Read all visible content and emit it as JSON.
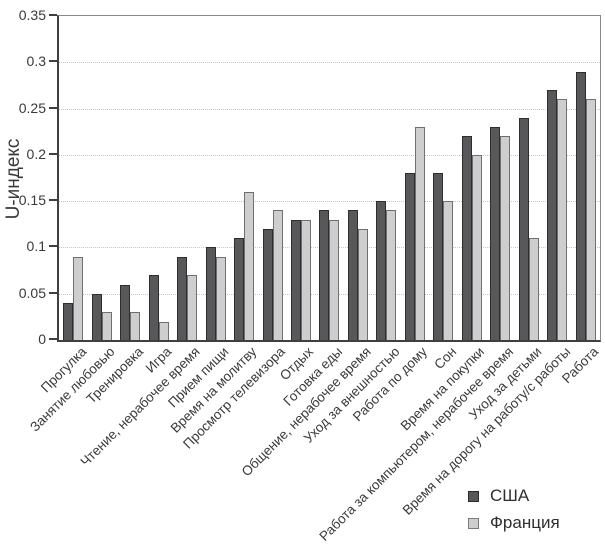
{
  "chart_data": {
    "type": "bar",
    "title": "",
    "xlabel": "",
    "ylabel": "U-индекс",
    "ylim": [
      0,
      0.35
    ],
    "yticks": [
      "0",
      "0.05",
      "0.1",
      "0.15",
      "0.2",
      "0.25",
      "0.3",
      "0.35"
    ],
    "grid": true,
    "legend_position": "bottom-right",
    "categories": [
      "Прогулка",
      "Занятие любовью",
      "Тренировка",
      "Игра",
      "Чтение, нерабочее время",
      "Прием пищи",
      "Время на молитву",
      "Просмотр телевизора",
      "Отдых",
      "Готовка еды",
      "Общение, нерабочее время",
      "Уход за внешностью",
      "Работа по дому",
      "Сон",
      "Время на покупки",
      "Работа за компьютером, нерабочее время",
      "Уход за детьми",
      "Время на дорогу на работу/с работы",
      "Работа"
    ],
    "series": [
      {
        "name": "США",
        "color": "#58585a",
        "values": [
          0.04,
          0.05,
          0.06,
          0.07,
          0.09,
          0.1,
          0.11,
          0.12,
          0.13,
          0.14,
          0.14,
          0.15,
          0.18,
          0.18,
          0.22,
          0.23,
          0.24,
          0.27,
          0.29
        ]
      },
      {
        "name": "Франция",
        "color": "#cecece",
        "values": [
          0.09,
          0.03,
          0.03,
          0.02,
          0.07,
          0.09,
          0.16,
          0.14,
          0.13,
          0.13,
          0.12,
          0.14,
          0.23,
          0.15,
          0.2,
          0.22,
          0.11,
          0.26,
          0.26
        ]
      }
    ]
  }
}
